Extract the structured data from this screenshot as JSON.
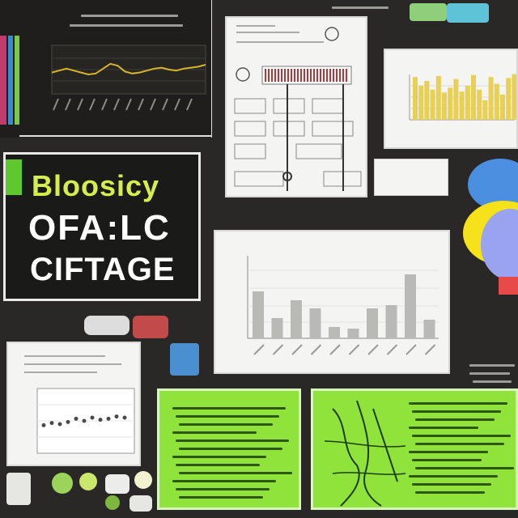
{
  "title_card": {
    "line1": "Bloosicy",
    "line2": "OFA:LC",
    "line3": "CIFTAGE"
  },
  "colors": {
    "background": "#2a2826",
    "title_green": "#d6ee4a",
    "panel_green": "#8fe33a",
    "bar_yellow": "#e8cf55",
    "bar_gray": "#b9b9b6",
    "line_yellow": "#d9b42a"
  },
  "chart_data": [
    {
      "type": "line",
      "y": [
        62,
        64,
        66,
        64,
        62,
        60,
        61,
        66,
        71,
        69,
        63,
        61,
        62,
        64,
        66,
        67,
        65,
        64,
        66,
        67,
        68,
        70
      ]
    },
    {
      "type": "bar",
      "values": [
        88,
        70,
        80,
        62,
        90,
        56,
        66,
        84,
        58,
        70,
        92,
        62,
        40,
        88,
        74,
        52,
        86,
        94
      ]
    },
    {
      "type": "bar",
      "values": [
        58,
        25,
        47,
        37,
        14,
        12,
        37,
        41,
        79,
        23
      ]
    },
    {
      "type": "scatter",
      "y": [
        46,
        48,
        47,
        49,
        52,
        50,
        53,
        51,
        52,
        54,
        53
      ]
    }
  ],
  "icons": [
    "pie-chart-icon",
    "sticker-icon",
    "flowchart-icon",
    "hand-drawing-icon"
  ]
}
